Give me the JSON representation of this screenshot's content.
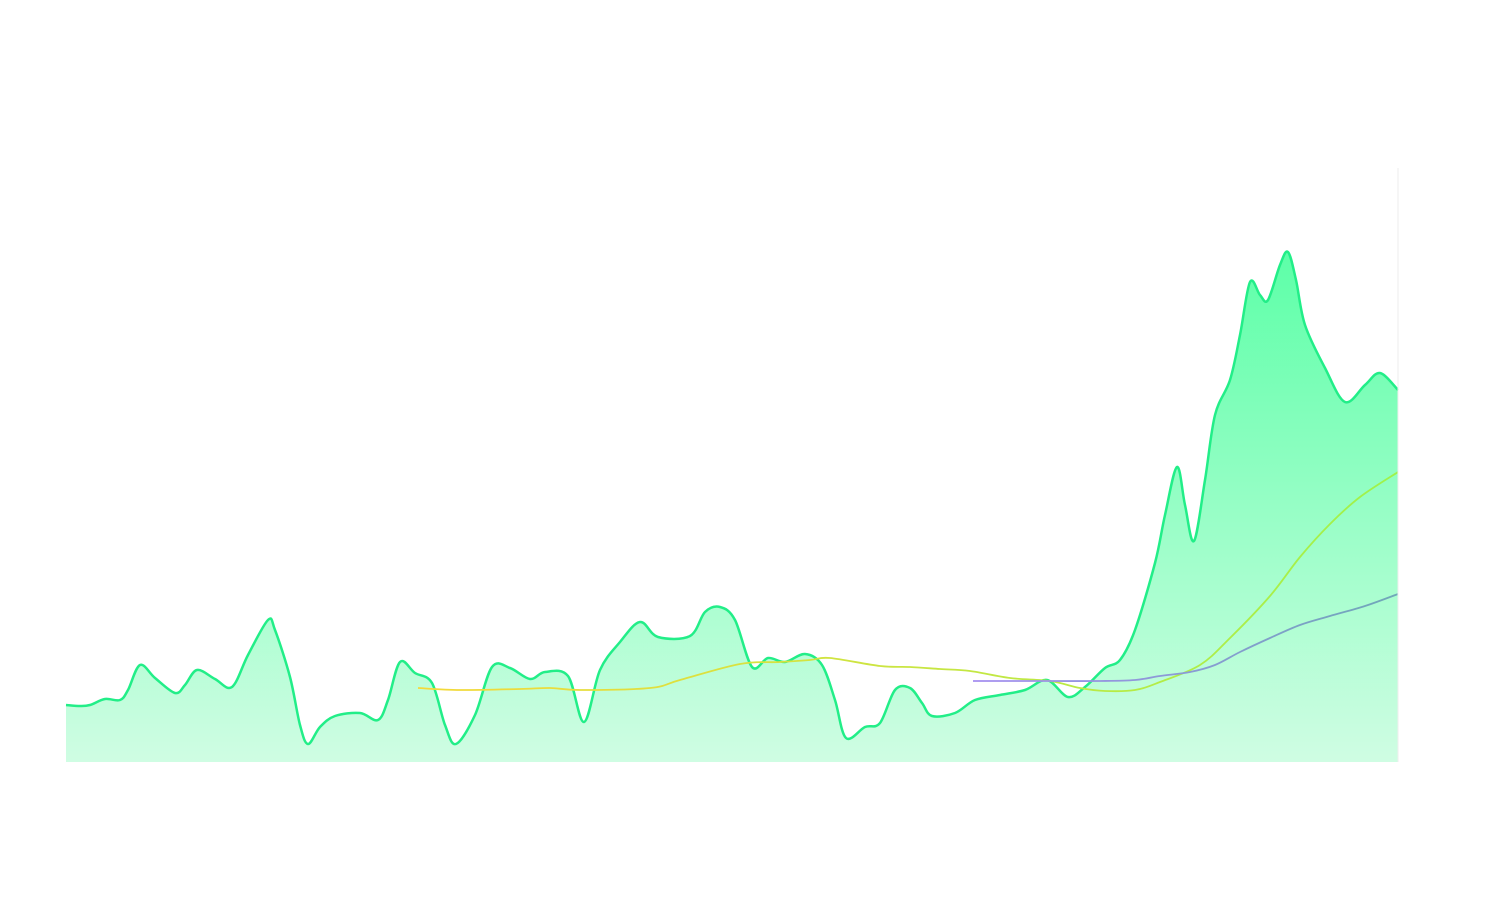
{
  "chart_data": {
    "type": "area",
    "xlim": [
      0,
      1332
    ],
    "ylim": [
      0,
      594
    ],
    "series": [
      {
        "color": "#22ee88",
        "fill": [
          "#5dffa8",
          "#cffde3"
        ],
        "x": [
          0,
          14,
          24,
          39,
          54,
          62,
          74,
          89,
          109,
          119,
          131,
          149,
          166,
          182,
          202,
          209,
          224,
          234,
          242,
          254,
          269,
          294,
          312,
          322,
          334,
          349,
          366,
          379,
          390,
          409,
          426,
          444,
          464,
          479,
          502,
          518,
          534,
          554,
          574,
          592,
          624,
          639,
          654,
          669,
          686,
          702,
          719,
          739,
          756,
          769,
          780,
          799,
          814,
          829,
          844,
          856,
          866,
          889,
          909,
          934,
          959,
          981,
          1002,
          1019,
          1039,
          1054,
          1069,
          1089,
          1099,
          1111,
          1119,
          1128,
          1139,
          1149,
          1164,
          1174,
          1184,
          1194,
          1202,
          1214,
          1222,
          1230,
          1239,
          1259,
          1279,
          1299,
          1314,
          1332
        ],
        "values": [
          57,
          56,
          57,
          63,
          62,
          72,
          97,
          84,
          69,
          77,
          92,
          83,
          75,
          107,
          142,
          132,
          85,
          37,
          18,
          35,
          46,
          49,
          42,
          62,
          100,
          89,
          79,
          37,
          18,
          47,
          95,
          94,
          83,
          90,
          86,
          40,
          92,
          120,
          140,
          125,
          126,
          150,
          155,
          142,
          95,
          104,
          100,
          108,
          97,
          62,
          24,
          35,
          39,
          72,
          74,
          59,
          46,
          49,
          62,
          67,
          72,
          82,
          65,
          75,
          94,
          102,
          132,
          199,
          247,
          295,
          257,
          221,
          282,
          347,
          382,
          427,
          480,
          467,
          462,
          497,
          510,
          482,
          437,
          394,
          360,
          377,
          389,
          372
        ]
      },
      {
        "color": [
          "#f5d93a",
          "#9ef24a"
        ],
        "x": [
          352,
          394,
          454,
          484,
          514,
          584,
          614,
          674,
          714,
          744,
          764,
          814,
          844,
          874,
          904,
          944,
          984,
          1014,
          1039,
          1069,
          1094,
          1134,
          1164,
          1204,
          1234,
          1264,
          1294,
          1332
        ],
        "values": [
          74,
          72,
          73,
          74,
          72,
          74,
          82,
          98,
          100,
          102,
          104,
          96,
          95,
          93,
          91,
          84,
          81,
          74,
          71,
          72,
          80,
          97,
          124,
          166,
          205,
          238,
          265,
          290
        ]
      },
      {
        "color": [
          "#a58ef0",
          "#6fa8b8"
        ],
        "x": [
          907,
          984,
          1034,
          1069,
          1094,
          1124,
          1149,
          1174,
          1204,
          1234,
          1264,
          1299,
          1332
        ],
        "values": [
          81,
          81,
          81,
          82,
          86,
          90,
          97,
          110,
          124,
          137,
          146,
          156,
          168
        ]
      }
    ]
  }
}
